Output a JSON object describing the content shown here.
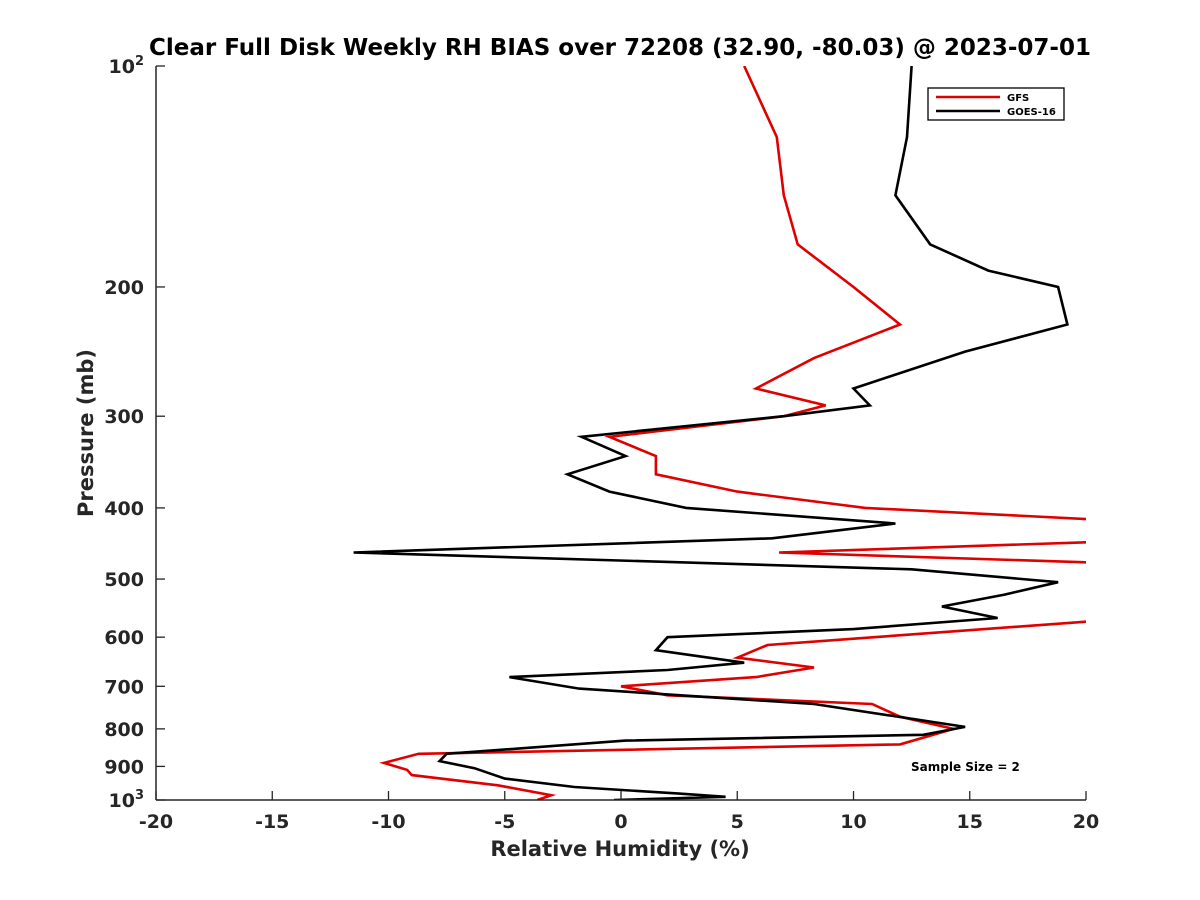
{
  "chart_data": {
    "type": "line",
    "title": "Clear Full Disk Weekly RH BIAS over 72208 (32.90, -80.03) @ 2023-07-01",
    "xlabel": "Relative Humidity (%)",
    "ylabel": "Pressure (mb)",
    "xlim": [
      -20,
      20
    ],
    "ylim": [
      100,
      1000
    ],
    "y_scale": "log",
    "y_reversed": true,
    "x_ticks": [
      "-20",
      "-15",
      "-10",
      "-5",
      "0",
      "5",
      "10",
      "15",
      "20"
    ],
    "y_ticks": [
      {
        "value": 100,
        "base": "10",
        "exp": "2"
      },
      {
        "value": 200,
        "label": "200"
      },
      {
        "value": 300,
        "label": "300"
      },
      {
        "value": 400,
        "label": "400"
      },
      {
        "value": 500,
        "label": "500"
      },
      {
        "value": 600,
        "label": "600"
      },
      {
        "value": 700,
        "label": "700"
      },
      {
        "value": 800,
        "label": "800"
      },
      {
        "value": 900,
        "label": "900"
      },
      {
        "value": 1000,
        "base": "10",
        "exp": "3"
      }
    ],
    "grid": false,
    "legend_position": "top-right",
    "annotation": "Sample Size = 2",
    "series": [
      {
        "name": "GFS",
        "color": "#e00000",
        "points": [
          [
            5.3,
            100
          ],
          [
            6.7,
            125
          ],
          [
            7.0,
            150
          ],
          [
            7.6,
            175
          ],
          [
            10.0,
            200
          ],
          [
            12.0,
            225
          ],
          [
            8.3,
            250
          ],
          [
            5.8,
            275
          ],
          [
            8.8,
            290
          ],
          [
            7.0,
            300
          ],
          [
            -0.5,
            320
          ],
          [
            1.5,
            340
          ],
          [
            1.5,
            360
          ],
          [
            5.0,
            380
          ],
          [
            10.5,
            400
          ],
          [
            20.5,
            415
          ],
          [
            20.5,
            445
          ],
          [
            6.8,
            460
          ],
          [
            20.5,
            475
          ],
          [
            20.5,
            570
          ],
          [
            6.3,
            615
          ],
          [
            5.0,
            640
          ],
          [
            8.3,
            660
          ],
          [
            5.8,
            680
          ],
          [
            0.0,
            700
          ],
          [
            2.0,
            720
          ],
          [
            10.8,
            740
          ],
          [
            12.0,
            770
          ],
          [
            14.3,
            800
          ],
          [
            12.0,
            840
          ],
          [
            -8.7,
            865
          ],
          [
            -10.2,
            890
          ],
          [
            -9.2,
            910
          ],
          [
            -9.0,
            925
          ],
          [
            -5.3,
            955
          ],
          [
            -3.0,
            985
          ],
          [
            -3.6,
            1000
          ]
        ]
      },
      {
        "name": "GOES-16",
        "color": "#000000",
        "points": [
          [
            12.5,
            100
          ],
          [
            12.3,
            125
          ],
          [
            11.8,
            150
          ],
          [
            13.3,
            175
          ],
          [
            15.8,
            190
          ],
          [
            18.8,
            200
          ],
          [
            19.2,
            225
          ],
          [
            14.8,
            245
          ],
          [
            10.0,
            275
          ],
          [
            10.7,
            290
          ],
          [
            7.0,
            300
          ],
          [
            -1.7,
            320
          ],
          [
            0.2,
            340
          ],
          [
            -2.3,
            360
          ],
          [
            -0.5,
            380
          ],
          [
            2.8,
            400
          ],
          [
            11.8,
            420
          ],
          [
            6.5,
            440
          ],
          [
            -11.5,
            460
          ],
          [
            12.5,
            485
          ],
          [
            18.8,
            505
          ],
          [
            16.5,
            525
          ],
          [
            13.8,
            545
          ],
          [
            16.2,
            565
          ],
          [
            10.0,
            585
          ],
          [
            2.0,
            600
          ],
          [
            1.5,
            625
          ],
          [
            5.3,
            650
          ],
          [
            2.0,
            665
          ],
          [
            -4.8,
            680
          ],
          [
            -1.8,
            705
          ],
          [
            8.3,
            740
          ],
          [
            14.8,
            795
          ],
          [
            13.0,
            815
          ],
          [
            0.2,
            830
          ],
          [
            -7.5,
            865
          ],
          [
            -7.8,
            885
          ],
          [
            -6.3,
            905
          ],
          [
            -5.0,
            935
          ],
          [
            -2.0,
            960
          ],
          [
            2.5,
            980
          ],
          [
            4.5,
            990
          ],
          [
            -0.3,
            1000
          ]
        ]
      }
    ]
  }
}
